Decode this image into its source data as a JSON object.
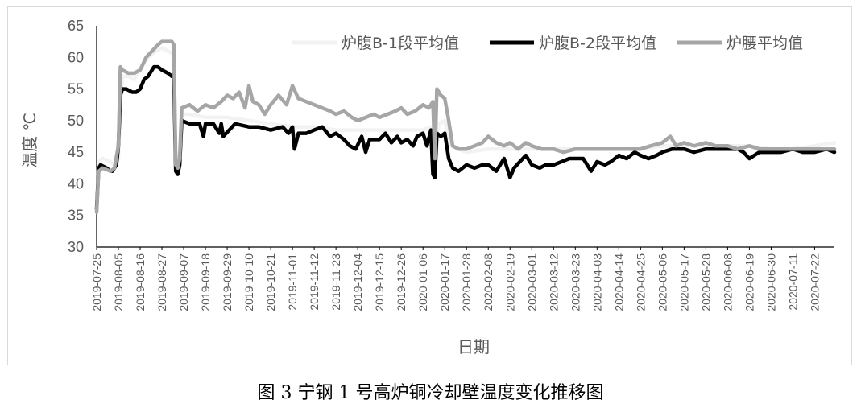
{
  "chart_data": {
    "type": "line",
    "xlabel": "日期",
    "ylabel": "温度 ℃",
    "ylim": [
      30,
      65
    ],
    "yticks": [
      30,
      35,
      40,
      45,
      50,
      55,
      60,
      65
    ],
    "x_range": [
      "2019-07-25",
      "2020-08-01"
    ],
    "x_ticks": [
      "2019-07-25",
      "2019-08-05",
      "2019-08-16",
      "2019-08-27",
      "2019-09-07",
      "2019-09-18",
      "2019-09-29",
      "2019-10-10",
      "2019-10-21",
      "2019-11-01",
      "2019-11-12",
      "2019-11-23",
      "2019-12-04",
      "2019-12-15",
      "2019-12-26",
      "2020-01-06",
      "2020-01-17",
      "2020-01-28",
      "2020-02-08",
      "2020-02-19",
      "2020-03-01",
      "2020-03-12",
      "2020-03-23",
      "2020-04-03",
      "2020-04-14",
      "2020-04-25",
      "2020-05-06",
      "2020-05-17",
      "2020-05-28",
      "2020-06-08",
      "2020-06-19",
      "2020-06-30",
      "2020-07-11",
      "2020-07-22"
    ],
    "grid": false,
    "legend_position": "top-right",
    "series": [
      {
        "name": "炉腹B-1段平均值",
        "color": "#f2f2f2",
        "x": [
          "2019-07-25",
          "2019-07-26",
          "2019-07-28",
          "2019-08-01",
          "2019-08-03",
          "2019-08-05",
          "2019-08-06",
          "2019-08-07",
          "2019-08-10",
          "2019-08-13",
          "2019-08-16",
          "2019-08-20",
          "2019-08-24",
          "2019-08-27",
          "2019-08-30",
          "2019-09-02",
          "2019-09-03",
          "2019-09-04",
          "2019-09-05",
          "2019-09-06",
          "2019-09-10",
          "2019-09-18",
          "2019-09-29",
          "2019-10-10",
          "2019-10-21",
          "2019-11-01",
          "2019-11-12",
          "2019-11-23",
          "2019-12-04",
          "2019-12-15",
          "2019-12-26",
          "2020-01-06",
          "2020-01-10",
          "2020-01-12",
          "2020-01-14",
          "2020-01-17",
          "2020-01-20",
          "2020-01-24",
          "2020-01-28",
          "2020-02-08",
          "2020-02-19",
          "2020-03-01",
          "2020-03-12",
          "2020-03-23",
          "2020-04-03",
          "2020-04-14",
          "2020-04-25",
          "2020-05-06",
          "2020-05-17",
          "2020-05-28",
          "2020-06-08",
          "2020-06-19",
          "2020-06-30",
          "2020-07-11",
          "2020-07-22",
          "2020-08-01"
        ],
        "values": [
          36,
          43.5,
          44,
          43.5,
          43,
          44,
          52,
          57,
          57,
          56.5,
          58,
          60,
          61,
          61.5,
          61,
          60.5,
          43,
          42.5,
          45,
          51,
          51,
          50.5,
          50.5,
          50,
          49.5,
          49,
          49,
          48.5,
          48.5,
          48.5,
          48.5,
          48.5,
          49,
          42.5,
          49.5,
          50,
          46,
          45.5,
          45,
          45.5,
          45.5,
          45.5,
          45.5,
          45.5,
          45.5,
          45.5,
          45.5,
          46,
          46,
          46,
          46,
          46,
          45.5,
          45.5,
          46,
          46.5
        ]
      },
      {
        "name": "炉腹B-2段平均值",
        "color": "#000000",
        "x": [
          "2019-07-25",
          "2019-07-26",
          "2019-07-27",
          "2019-07-30",
          "2019-08-01",
          "2019-08-02",
          "2019-08-04",
          "2019-08-05",
          "2019-08-06",
          "2019-08-07",
          "2019-08-09",
          "2019-08-12",
          "2019-08-14",
          "2019-08-16",
          "2019-08-18",
          "2019-08-20",
          "2019-08-23",
          "2019-08-25",
          "2019-08-27",
          "2019-08-30",
          "2019-09-01",
          "2019-09-02",
          "2019-09-03",
          "2019-09-04",
          "2019-09-05",
          "2019-09-06",
          "2019-09-10",
          "2019-09-15",
          "2019-09-17",
          "2019-09-18",
          "2019-09-22",
          "2019-09-25",
          "2019-09-26",
          "2019-09-27",
          "2019-10-03",
          "2019-10-10",
          "2019-10-15",
          "2019-10-21",
          "2019-10-27",
          "2019-10-30",
          "2019-11-01",
          "2019-11-02",
          "2019-11-04",
          "2019-11-08",
          "2019-11-12",
          "2019-11-16",
          "2019-11-20",
          "2019-11-23",
          "2019-11-27",
          "2019-11-30",
          "2019-12-03",
          "2019-12-06",
          "2019-12-08",
          "2019-12-10",
          "2019-12-15",
          "2019-12-18",
          "2019-12-21",
          "2019-12-24",
          "2019-12-26",
          "2019-12-29",
          "2020-01-01",
          "2020-01-03",
          "2020-01-06",
          "2020-01-08",
          "2020-01-10",
          "2020-01-11",
          "2020-01-12",
          "2020-01-13",
          "2020-01-15",
          "2020-01-17",
          "2020-01-19",
          "2020-01-21",
          "2020-01-24",
          "2020-01-28",
          "2020-02-01",
          "2020-02-05",
          "2020-02-08",
          "2020-02-12",
          "2020-02-16",
          "2020-02-19",
          "2020-02-21",
          "2020-02-24",
          "2020-02-27",
          "2020-03-01",
          "2020-03-05",
          "2020-03-08",
          "2020-03-12",
          "2020-03-16",
          "2020-03-20",
          "2020-03-23",
          "2020-03-27",
          "2020-03-31",
          "2020-04-03",
          "2020-04-07",
          "2020-04-10",
          "2020-04-14",
          "2020-04-18",
          "2020-04-22",
          "2020-04-25",
          "2020-04-29",
          "2020-05-03",
          "2020-05-06",
          "2020-05-11",
          "2020-05-17",
          "2020-05-22",
          "2020-05-28",
          "2020-06-02",
          "2020-06-08",
          "2020-06-13",
          "2020-06-16",
          "2020-06-19",
          "2020-06-24",
          "2020-06-30",
          "2020-07-05",
          "2020-07-11",
          "2020-07-16",
          "2020-07-22",
          "2020-07-28",
          "2020-08-01"
        ],
        "values": [
          36,
          42.5,
          43,
          42.5,
          42,
          42,
          43,
          46,
          54,
          55,
          55,
          54.5,
          54.5,
          55,
          56.5,
          57,
          58.5,
          58.5,
          58,
          57.5,
          57,
          57.5,
          42,
          41.5,
          43,
          50,
          49.5,
          49.5,
          47.5,
          49.5,
          49.5,
          48,
          49.5,
          47.5,
          49.5,
          49,
          49,
          48.5,
          49,
          48,
          49,
          45.5,
          48,
          48,
          48.5,
          49,
          47.5,
          48,
          47,
          46,
          45.5,
          47.5,
          45,
          47,
          47,
          48,
          46.5,
          47.5,
          46.5,
          47,
          46,
          47.5,
          48,
          46,
          48.5,
          41.5,
          41,
          48,
          47.5,
          48,
          44,
          42.5,
          42,
          43,
          42.5,
          43,
          43,
          42,
          44,
          41,
          42.5,
          43.5,
          44.5,
          43,
          42.5,
          43,
          43,
          43.5,
          44,
          44,
          44,
          42,
          43.5,
          43,
          43.5,
          44.5,
          44,
          45,
          44.5,
          44,
          44.5,
          45,
          45.5,
          45.5,
          45,
          45.5,
          45.5,
          45.5,
          45.5,
          45,
          44,
          45,
          45,
          45,
          45.5,
          45,
          45,
          45.5,
          45
        ]
      },
      {
        "name": "炉腰平均值",
        "color": "#a6a6a6",
        "x": [
          "2019-07-25",
          "2019-07-26",
          "2019-07-28",
          "2019-08-01",
          "2019-08-03",
          "2019-08-05",
          "2019-08-06",
          "2019-08-07",
          "2019-08-10",
          "2019-08-13",
          "2019-08-16",
          "2019-08-19",
          "2019-08-22",
          "2019-08-25",
          "2019-08-27",
          "2019-08-30",
          "2019-09-01",
          "2019-09-02",
          "2019-09-03",
          "2019-09-04",
          "2019-09-05",
          "2019-09-06",
          "2019-09-10",
          "2019-09-14",
          "2019-09-18",
          "2019-09-22",
          "2019-09-26",
          "2019-09-29",
          "2019-10-02",
          "2019-10-05",
          "2019-10-08",
          "2019-10-10",
          "2019-10-12",
          "2019-10-15",
          "2019-10-18",
          "2019-10-21",
          "2019-10-25",
          "2019-10-29",
          "2019-11-01",
          "2019-11-04",
          "2019-11-08",
          "2019-11-12",
          "2019-11-16",
          "2019-11-20",
          "2019-11-23",
          "2019-11-27",
          "2019-12-01",
          "2019-12-04",
          "2019-12-08",
          "2019-12-12",
          "2019-12-15",
          "2019-12-19",
          "2019-12-23",
          "2019-12-26",
          "2019-12-29",
          "2020-01-02",
          "2020-01-06",
          "2020-01-09",
          "2020-01-11",
          "2020-01-12",
          "2020-01-13",
          "2020-01-15",
          "2020-01-17",
          "2020-01-19",
          "2020-01-21",
          "2020-01-24",
          "2020-01-28",
          "2020-02-01",
          "2020-02-05",
          "2020-02-08",
          "2020-02-12",
          "2020-02-16",
          "2020-02-19",
          "2020-02-23",
          "2020-02-27",
          "2020-03-01",
          "2020-03-06",
          "2020-03-12",
          "2020-03-17",
          "2020-03-23",
          "2020-03-28",
          "2020-04-03",
          "2020-04-09",
          "2020-04-14",
          "2020-04-19",
          "2020-04-25",
          "2020-04-30",
          "2020-05-06",
          "2020-05-10",
          "2020-05-13",
          "2020-05-17",
          "2020-05-22",
          "2020-05-28",
          "2020-06-02",
          "2020-06-08",
          "2020-06-13",
          "2020-06-19",
          "2020-06-24",
          "2020-06-30",
          "2020-07-05",
          "2020-07-11",
          "2020-07-16",
          "2020-07-22",
          "2020-07-27",
          "2020-08-01"
        ],
        "values": [
          35.5,
          42,
          42.5,
          42,
          42.5,
          46,
          58.5,
          58,
          57.5,
          57.5,
          58,
          60,
          61,
          62,
          62.5,
          62.5,
          62.5,
          62,
          43,
          42.5,
          44,
          52,
          52.5,
          51.5,
          52.5,
          52,
          53,
          54,
          53.5,
          54.5,
          52,
          55.5,
          53,
          52.5,
          51,
          52.5,
          54,
          52.5,
          55.5,
          53.5,
          53,
          52.5,
          52,
          51.5,
          51,
          51.5,
          50.5,
          50,
          50.5,
          51,
          50.5,
          51,
          51.5,
          52,
          51,
          51.5,
          52.5,
          52,
          53,
          44,
          55,
          54,
          53.5,
          50,
          46,
          45.5,
          45.5,
          46,
          46.5,
          47.5,
          46.5,
          46,
          46.5,
          45.5,
          46.5,
          46,
          45.5,
          45.5,
          45,
          45.5,
          45.5,
          45.5,
          45.5,
          45.5,
          45.5,
          45.5,
          46,
          46.5,
          47.5,
          46,
          46.5,
          46,
          46.5,
          46,
          46,
          45.5,
          46,
          45.5,
          45.5,
          45.5,
          45.5,
          45.5,
          45.5,
          45.5,
          45.5
        ]
      }
    ]
  },
  "caption": "图 3  宁钢 1 号高炉铜冷却壁温度变化推移图"
}
